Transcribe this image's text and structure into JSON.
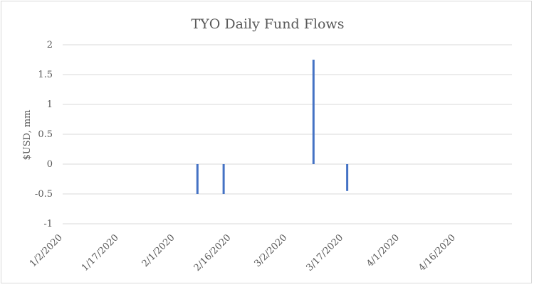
{
  "chart_data": {
    "type": "bar",
    "title": "TYO Daily Fund Flows",
    "xlabel": "",
    "ylabel": "$USD, mm",
    "ylim": [
      -1,
      2
    ],
    "yticks": [
      2,
      1.5,
      1,
      0.5,
      0,
      -0.5,
      -1
    ],
    "ytick_labels": [
      "2",
      "1.5",
      "1",
      "0.5",
      "0",
      "-0.5",
      "-1"
    ],
    "x_range": [
      "2020-01-02",
      "2020-05-01"
    ],
    "xticks": [
      "2020-01-02",
      "2020-01-17",
      "2020-02-01",
      "2020-02-16",
      "2020-03-02",
      "2020-03-17",
      "2020-04-01",
      "2020-04-16"
    ],
    "xtick_labels": [
      "1/2/2020",
      "1/17/2020",
      "2/1/2020",
      "2/16/2020",
      "3/2/2020",
      "3/17/2020",
      "4/1/2020",
      "4/16/2020"
    ],
    "grid": true,
    "legend": "none",
    "bar_color": "#4472c4",
    "points": [
      {
        "date": "2020-02-07",
        "value": -0.5
      },
      {
        "date": "2020-02-14",
        "value": -0.5
      },
      {
        "date": "2020-03-09",
        "value": 1.75
      },
      {
        "date": "2020-03-18",
        "value": -0.45
      }
    ]
  }
}
